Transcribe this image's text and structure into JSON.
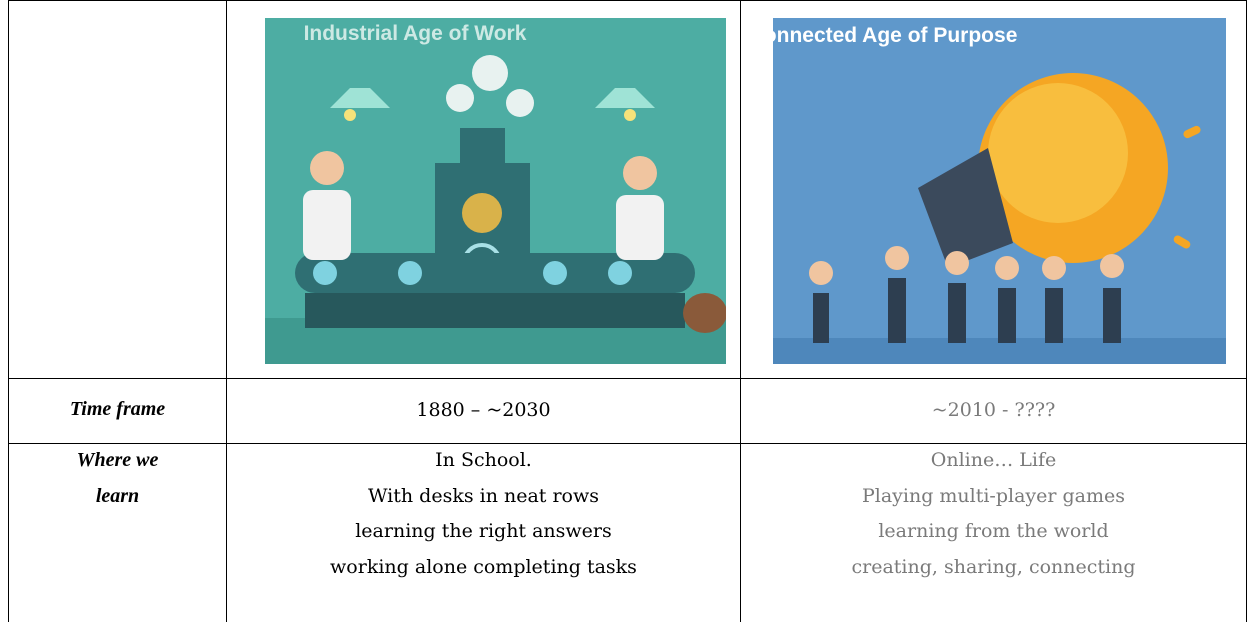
{
  "table": {
    "header": {
      "images": [
        {
          "title": "Industrial Age of Work"
        },
        {
          "title": "Connected Age of Purpose"
        }
      ]
    },
    "rows": [
      {
        "label": "Time frame",
        "cells": [
          [
            "1880 – ~2030"
          ],
          [
            "~2010 - ????"
          ]
        ]
      },
      {
        "label": "Where we learn",
        "cells": [
          [
            "In School.",
            "With desks in neat rows",
            "learning the right answers",
            "working alone completing tasks"
          ],
          [
            "Online… Life",
            "Playing multi-player games",
            "learning from the world",
            "creating, sharing, connecting"
          ]
        ]
      }
    ]
  }
}
